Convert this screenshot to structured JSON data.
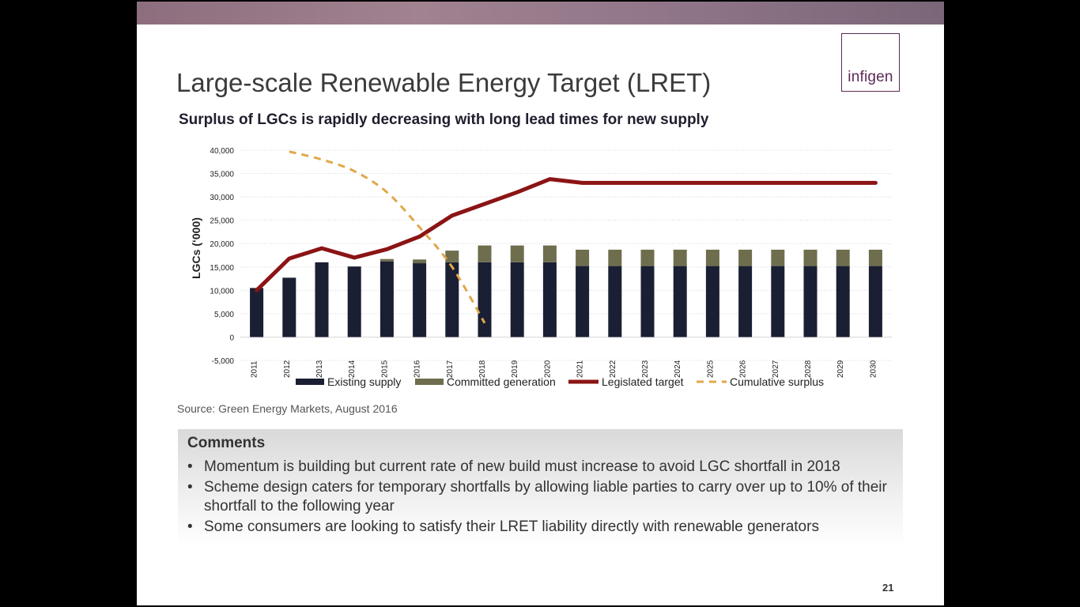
{
  "slide": {
    "title": "Large-scale Renewable Energy Target (LRET)",
    "logo_text": "infigen",
    "source": "Source: Green Energy Markets, August 2016",
    "page_number": "21",
    "colors": {
      "banner": "#93788a",
      "logo": "#5b2a56"
    }
  },
  "comments": {
    "heading": "Comments",
    "bullets": [
      "Momentum is building but current rate of new build must increase to avoid LGC shortfall in 2018",
      "Scheme design caters for temporary shortfalls by allowing liable parties to carry over up to 10% of their shortfall to the following year",
      "Some consumers are looking to satisfy their LRET liability directly with renewable generators"
    ]
  },
  "chart_data": {
    "type": "bar",
    "title": "Surplus of LGCs is rapidly decreasing with long lead times for new supply",
    "ylabel": "LGCs (‘000)",
    "xlabel": "",
    "ylim": [
      -5000,
      40000
    ],
    "yticks": [
      -5000,
      0,
      5000,
      10000,
      15000,
      20000,
      25000,
      30000,
      35000,
      40000
    ],
    "ytick_labels": [
      "-5,000",
      "0",
      "5,000",
      "10,000",
      "15,000",
      "20,000",
      "25,000",
      "30,000",
      "35,000",
      "40,000"
    ],
    "grid": "horizontal",
    "legend": "bottom",
    "categories": [
      "2011",
      "2012",
      "2013",
      "2014",
      "2015",
      "2016",
      "2017",
      "2018",
      "2019",
      "2020",
      "2021",
      "2022",
      "2023",
      "2024",
      "2025",
      "2026",
      "2027",
      "2028",
      "2029",
      "2030"
    ],
    "series": [
      {
        "name": "Existing supply",
        "kind": "bar-stacked",
        "color": "#1a1f33",
        "values": [
          10500,
          12700,
          16000,
          15100,
          16200,
          15800,
          16000,
          16000,
          16000,
          16000,
          15200,
          15200,
          15200,
          15200,
          15200,
          15200,
          15200,
          15200,
          15200,
          15200
        ]
      },
      {
        "name": "Committed generation",
        "kind": "bar-stacked",
        "color": "#6e6e4e",
        "values": [
          0,
          0,
          0,
          0,
          500,
          800,
          2500,
          3600,
          3600,
          3600,
          3500,
          3500,
          3500,
          3500,
          3500,
          3500,
          3500,
          3500,
          3500,
          3500
        ]
      },
      {
        "name": "Legislated target",
        "kind": "line",
        "color": "#8b1414",
        "values": [
          10000,
          16800,
          19000,
          17000,
          18800,
          21500,
          26000,
          28500,
          31000,
          33800,
          33000,
          33000,
          33000,
          33000,
          33000,
          33000,
          33000,
          33000,
          33000,
          33000
        ]
      },
      {
        "name": "Cumulative surplus",
        "kind": "line-dashed",
        "color": "#e0a84a",
        "values": [
          null,
          39700,
          38000,
          35500,
          31000,
          23500,
          15000,
          3000,
          null,
          null,
          null,
          null,
          null,
          null,
          null,
          null,
          null,
          null,
          null,
          null
        ]
      }
    ]
  }
}
